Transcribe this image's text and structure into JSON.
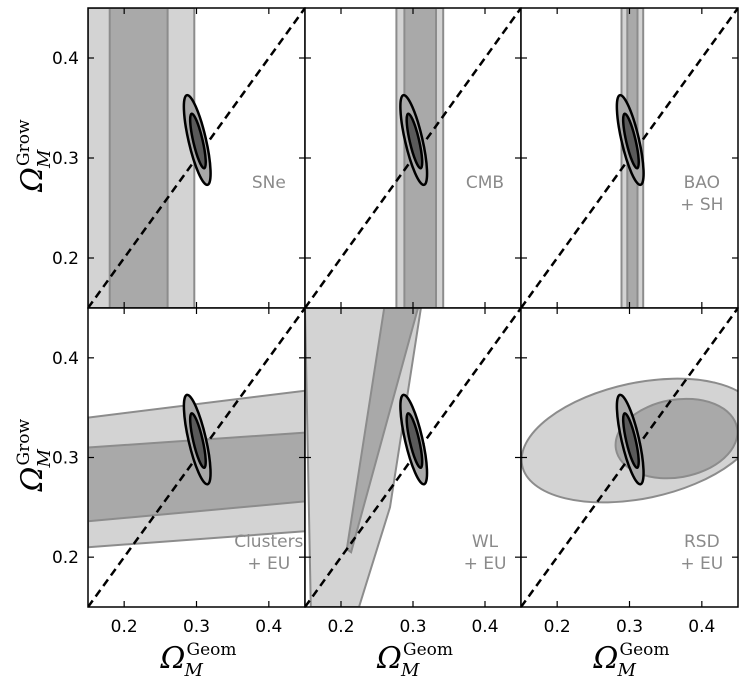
{
  "chart_data": {
    "type": "contour",
    "title": "",
    "layout": "2 rows x 3 columns, shared axes",
    "xlabel": {
      "symbol": "Ω",
      "sup": "Geom",
      "sub": "M"
    },
    "ylabel": {
      "symbol": "Ω",
      "sup": "Grow",
      "sub": "M"
    },
    "xlim": [
      0.15,
      0.45
    ],
    "ylim": [
      0.15,
      0.45
    ],
    "xticks": [
      0.2,
      0.3,
      0.4
    ],
    "yticks": [
      0.2,
      0.3,
      0.4
    ],
    "xtick_labels": [
      "0.2",
      "0.3",
      "0.4"
    ],
    "ytick_labels": [
      "0.2",
      "0.3",
      "0.4"
    ],
    "reference_line": {
      "style": "dashed",
      "color": "#000000",
      "from": [
        0.15,
        0.15
      ],
      "to": [
        0.45,
        0.45
      ],
      "meaning": "Omega_grow = Omega_geom"
    },
    "colors": {
      "outer_contour": "#d3d3d3",
      "inner_contour": "#a9a9a9",
      "contour_edge": "#8c8c8c",
      "combined_outer": "#a9a9a9",
      "combined_inner": "#5a5a5a",
      "combined_edge": "#000000",
      "label": "#8a8a8a"
    },
    "combined_constraint": {
      "outer": {
        "center": [
          0.301,
          0.318
        ],
        "rx": 0.012,
        "ry": 0.046,
        "tilt_deg": 13
      },
      "inner": {
        "center": [
          0.302,
          0.317
        ],
        "rx": 0.0065,
        "ry": 0.028,
        "tilt_deg": 13
      }
    },
    "panels": [
      {
        "name": "SNe",
        "label_lines": [
          "SNe"
        ],
        "label_pos": [
          0.4,
          0.27
        ],
        "outer": [
          [
            0.15,
            0.45
          ],
          [
            0.297,
            0.45
          ],
          [
            0.297,
            0.15
          ],
          [
            0.15,
            0.15
          ]
        ],
        "inner": [
          [
            0.18,
            0.45
          ],
          [
            0.26,
            0.45
          ],
          [
            0.26,
            0.15
          ],
          [
            0.18,
            0.15
          ]
        ]
      },
      {
        "name": "CMB",
        "label_lines": [
          "CMB"
        ],
        "label_pos": [
          0.4,
          0.27
        ],
        "outer": [
          [
            0.277,
            0.45
          ],
          [
            0.342,
            0.45
          ],
          [
            0.342,
            0.15
          ],
          [
            0.277,
            0.15
          ]
        ],
        "inner": [
          [
            0.288,
            0.45
          ],
          [
            0.332,
            0.45
          ],
          [
            0.332,
            0.15
          ],
          [
            0.288,
            0.15
          ]
        ]
      },
      {
        "name": "BAO + SH",
        "label_lines": [
          "BAO",
          "+ SH"
        ],
        "label_pos": [
          0.4,
          0.27
        ],
        "outer": [
          [
            0.289,
            0.45
          ],
          [
            0.319,
            0.45
          ],
          [
            0.319,
            0.15
          ],
          [
            0.289,
            0.15
          ]
        ],
        "inner": [
          [
            0.297,
            0.45
          ],
          [
            0.311,
            0.45
          ],
          [
            0.311,
            0.15
          ],
          [
            0.297,
            0.15
          ]
        ]
      },
      {
        "name": "Clusters + EU",
        "label_lines": [
          "Clusters",
          "+ EU"
        ],
        "label_pos": [
          0.4,
          0.21
        ],
        "outer": [
          [
            0.15,
            0.34
          ],
          [
            0.45,
            0.367
          ],
          [
            0.45,
            0.226
          ],
          [
            0.15,
            0.21
          ]
        ],
        "inner": [
          [
            0.15,
            0.31
          ],
          [
            0.45,
            0.325
          ],
          [
            0.45,
            0.256
          ],
          [
            0.15,
            0.236
          ]
        ]
      },
      {
        "name": "WL + EU",
        "label_lines": [
          "WL",
          "+ EU"
        ],
        "label_pos": [
          0.4,
          0.21
        ],
        "outer": [
          [
            0.15,
            0.45
          ],
          [
            0.311,
            0.45
          ],
          [
            0.268,
            0.25
          ],
          [
            0.225,
            0.15
          ],
          [
            0.158,
            0.15
          ]
        ],
        "inner": [
          [
            0.26,
            0.45
          ],
          [
            0.307,
            0.45
          ],
          [
            0.214,
            0.205
          ],
          [
            0.208,
            0.208
          ]
        ]
      },
      {
        "name": "RSD + EU",
        "label_lines": [
          "RSD",
          "+ EU"
        ],
        "label_pos": [
          0.4,
          0.21
        ],
        "outer_ellipse": {
          "center": [
            0.315,
            0.317
          ],
          "rx": 0.167,
          "ry": 0.058,
          "tilt_deg": 12
        },
        "inner_ellipse": {
          "center": [
            0.365,
            0.319
          ],
          "rx": 0.085,
          "ry": 0.039,
          "tilt_deg": 10
        }
      }
    ]
  }
}
